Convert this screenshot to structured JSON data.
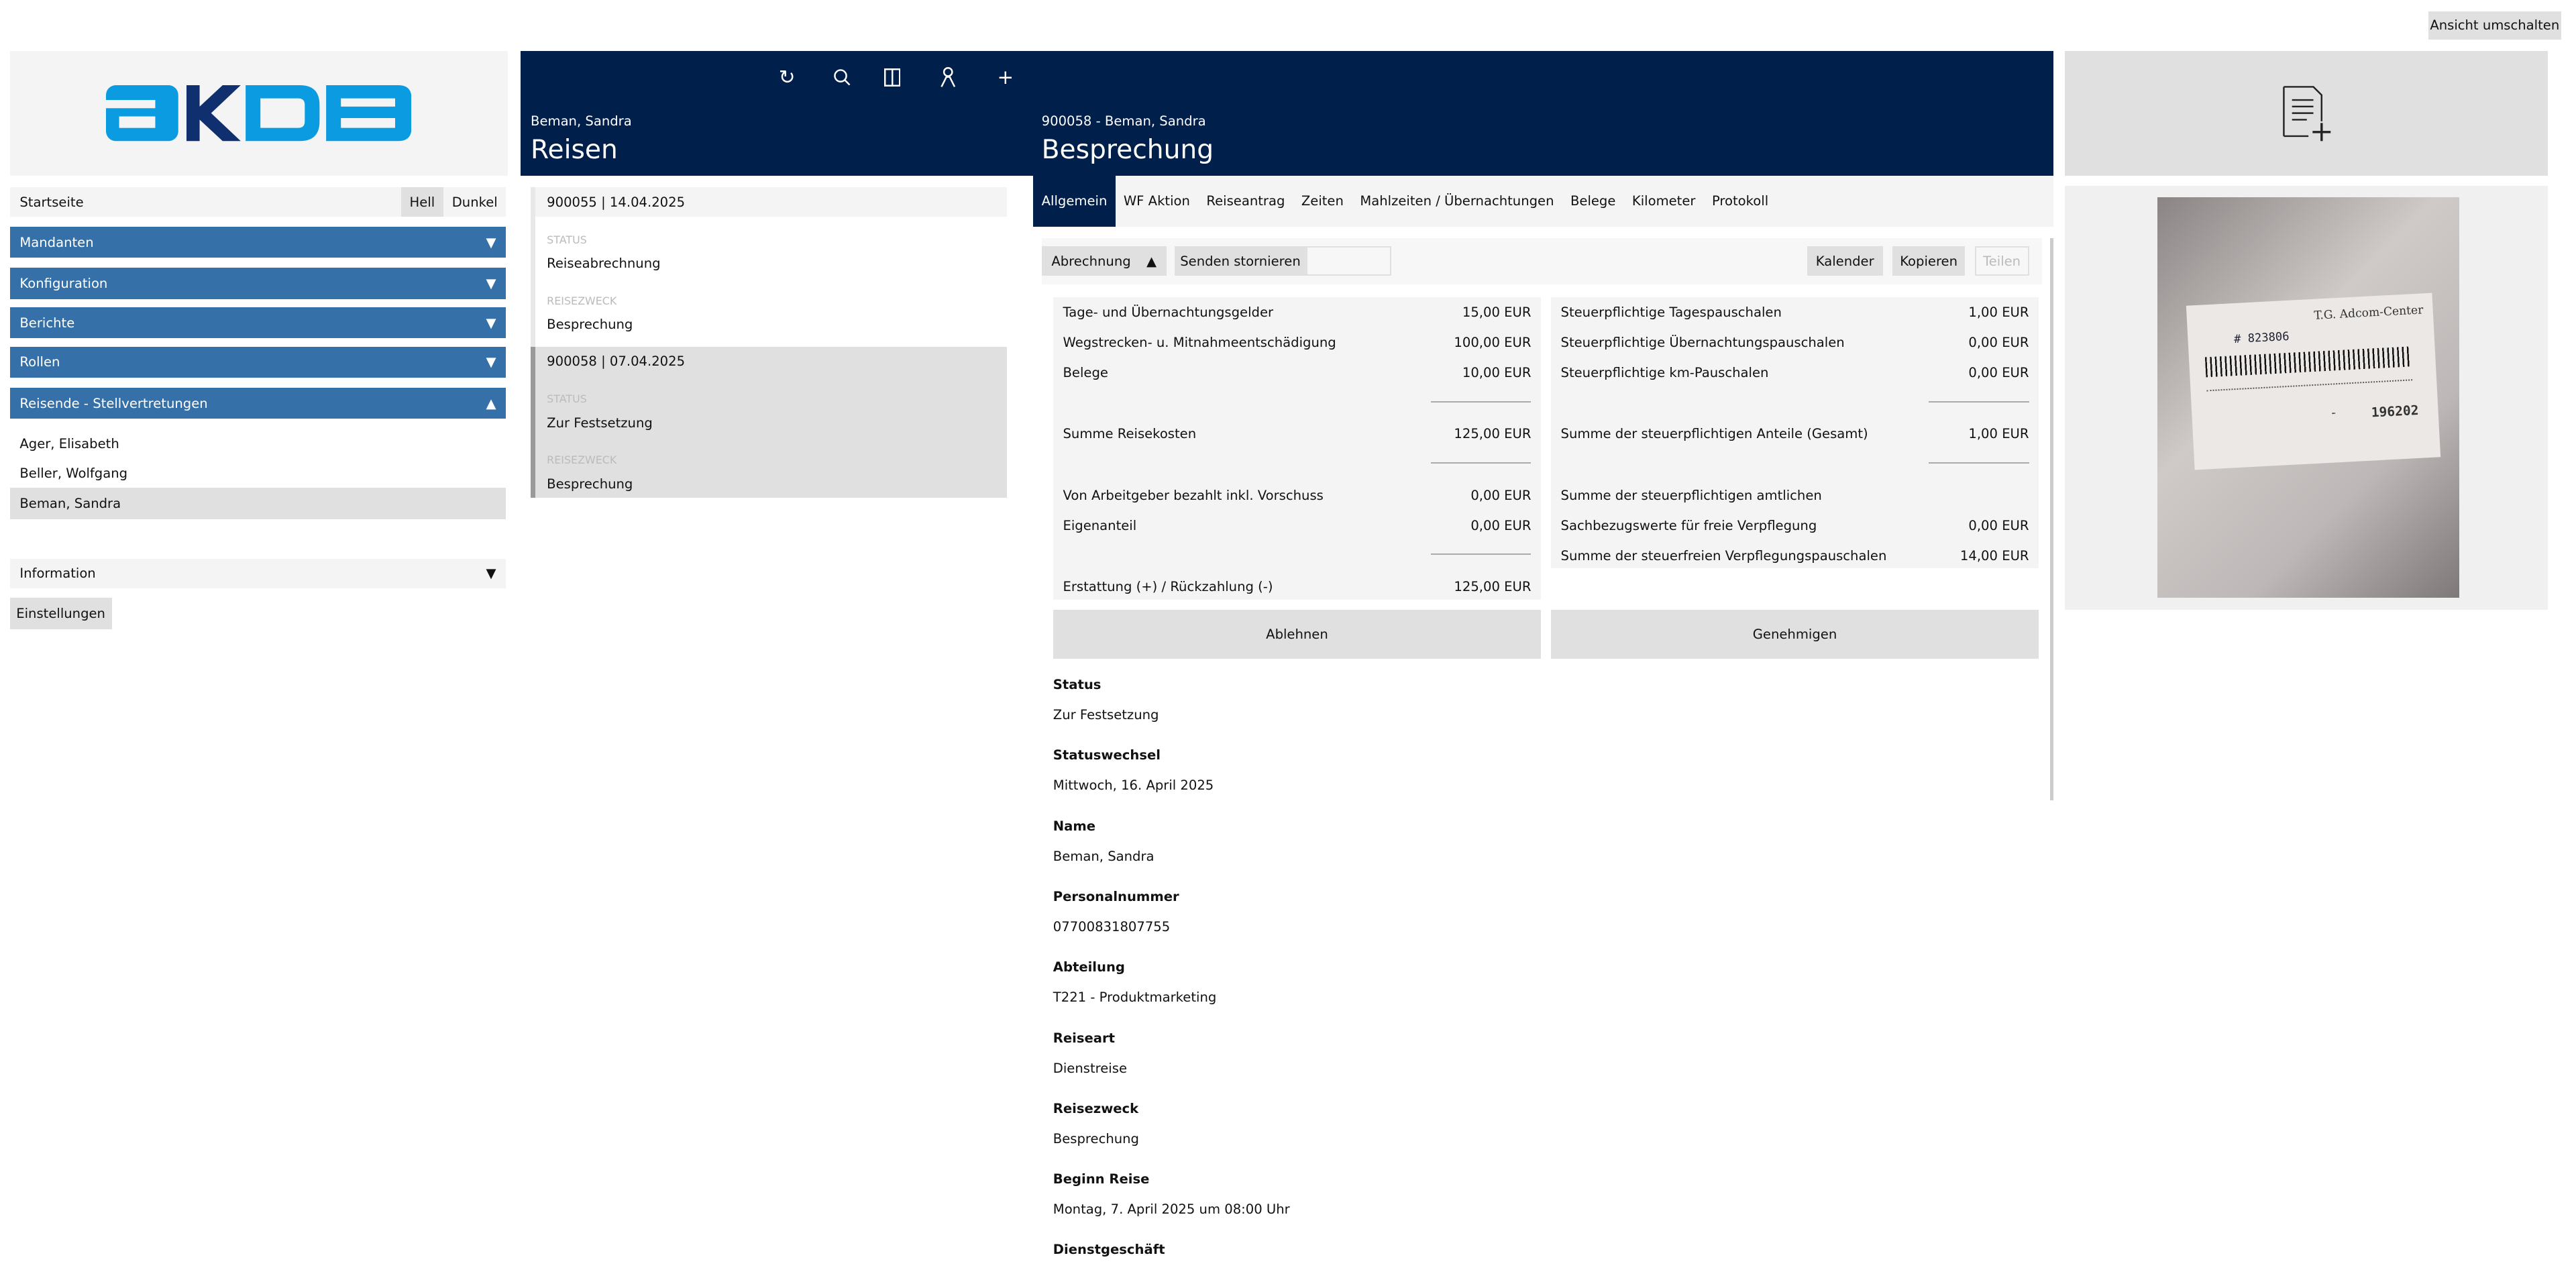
{
  "top": {
    "toggle_view": "Ansicht umschalten"
  },
  "logo": {
    "text": "aKDB",
    "colors": {
      "light": "#0a9be0",
      "dark": "#0f2f6e"
    }
  },
  "nav": {
    "home": "Startseite",
    "theme_light": "Hell",
    "theme_dark": "Dunkel",
    "sections": [
      {
        "label": "Mandanten",
        "arrow": "▼"
      },
      {
        "label": "Konfiguration",
        "arrow": "▼"
      },
      {
        "label": "Berichte",
        "arrow": "▼"
      },
      {
        "label": "Rollen",
        "arrow": "▼"
      },
      {
        "label": "Reisende - Stellvertretungen",
        "arrow": "▲"
      }
    ],
    "persons": [
      "Ager, Elisabeth",
      "Beller, Wolfgang",
      "Beman, Sandra"
    ],
    "information": "Information",
    "information_arrow": "▼",
    "settings": "Einstellungen"
  },
  "list": {
    "subtitle": "Beman, Sandra",
    "title": "Reisen",
    "items": [
      {
        "header": "900055 | 14.04.2025",
        "status_label": "STATUS",
        "status": "Reiseabrechnung",
        "purpose_label": "REISEZWECK",
        "purpose": "Besprechung"
      },
      {
        "header": "900058 | 07.04.2025",
        "status_label": "STATUS",
        "status": "Zur Festsetzung",
        "purpose_label": "REISEZWECK",
        "purpose": "Besprechung"
      }
    ]
  },
  "detail": {
    "subtitle": "900058 - Beman, Sandra",
    "title": "Besprechung",
    "tabs": [
      "Allgemein",
      "WF Aktion",
      "Reiseantrag",
      "Zeiten",
      "Mahlzeiten / Übernachtungen",
      "Belege",
      "Kilometer",
      "Protokoll"
    ],
    "toolbar": {
      "abrechnung": "Abrechnung",
      "abrechnung_arrow": "▲",
      "cancel_send": "Senden stornieren",
      "calendar": "Kalender",
      "copy": "Kopieren",
      "share": "Teilen"
    },
    "left_summary": [
      {
        "label": "Tage- und Übernachtungsgelder",
        "value": "15,00 EUR"
      },
      {
        "label": "Wegstrecken- u. Mitnahmeentschädigung",
        "value": "100,00 EUR"
      },
      {
        "label": "Belege",
        "value": "10,00 EUR"
      },
      {
        "label": "Summe Reisekosten",
        "value": "125,00 EUR"
      },
      {
        "label": "Von Arbeitgeber bezahlt inkl. Vorschuss",
        "value": "0,00 EUR"
      },
      {
        "label": "Eigenanteil",
        "value": "0,00 EUR"
      },
      {
        "label": "Erstattung (+) / Rückzahlung (-)",
        "value": "125,00 EUR"
      }
    ],
    "right_summary": [
      {
        "label": "Steuerpflichtige Tagespauschalen",
        "value": "1,00 EUR"
      },
      {
        "label": "Steuerpflichtige Übernachtungspauschalen",
        "value": "0,00 EUR"
      },
      {
        "label": "Steuerpflichtige km-Pauschalen",
        "value": "0,00 EUR"
      },
      {
        "label": "Summe der steuerpflichtigen Anteile (Gesamt)",
        "value": "1,00 EUR"
      },
      {
        "label": "Summe der steuerpflichtigen amtlichen",
        "value": ""
      },
      {
        "label": "Sachbezugswerte für freie Verpflegung",
        "value": "0,00 EUR"
      },
      {
        "label": "Summe der steuerfreien Verpflegungspauschalen",
        "value": "14,00 EUR"
      }
    ],
    "reject": "Ablehnen",
    "approve": "Genehmigen",
    "fields": [
      {
        "label": "Status",
        "value": "Zur Festsetzung"
      },
      {
        "label": "Statuswechsel",
        "value": "Mittwoch, 16. April 2025"
      },
      {
        "label": "Name",
        "value": "Beman, Sandra"
      },
      {
        "label": "Personalnummer",
        "value": "07700831807755"
      },
      {
        "label": "Abteilung",
        "value": "T221 - Produktmarketing"
      },
      {
        "label": "Reiseart",
        "value": "Dienstreise"
      },
      {
        "label": "Reisezweck",
        "value": "Besprechung"
      },
      {
        "label": "Beginn Reise",
        "value": "Montag, 7. April 2025 um 08:00 Uhr"
      },
      {
        "label": "Dienstgeschäft",
        "value": ""
      }
    ]
  },
  "receipt": {
    "company": "T.G. Adcom-Center",
    "number": "196202",
    "handwritten": "# 823806"
  }
}
